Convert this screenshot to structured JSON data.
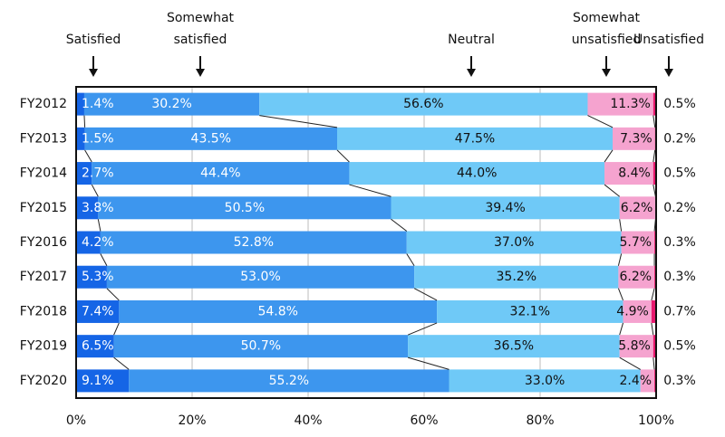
{
  "chart_data": {
    "type": "bar",
    "orientation": "horizontal",
    "stacked": true,
    "percent_stacked": true,
    "categories": [
      "FY2012",
      "FY2013",
      "FY2014",
      "FY2015",
      "FY2016",
      "FY2017",
      "FY2018",
      "FY2019",
      "FY2020"
    ],
    "series": [
      {
        "name": "Satisfied",
        "color": "#1565e6",
        "values": [
          1.4,
          1.5,
          2.7,
          3.8,
          4.2,
          5.3,
          7.4,
          6.5,
          9.1
        ],
        "labels": [
          "1.4%",
          "1.5%",
          "2.7%",
          "3.8%",
          "4.2%",
          "5.3%",
          "7.4%",
          "6.5%",
          "9.1%"
        ]
      },
      {
        "name": "Somewhat satisfied",
        "color": "#3d96ee",
        "values": [
          30.2,
          43.5,
          44.4,
          50.5,
          52.8,
          53.0,
          54.8,
          50.7,
          55.2
        ],
        "labels": [
          "30.2%",
          "43.5%",
          "44.4%",
          "50.5%",
          "52.8%",
          "53.0%",
          "54.8%",
          "50.7%",
          "55.2%"
        ]
      },
      {
        "name": "Neutral",
        "color": "#6fc9f7",
        "values": [
          56.6,
          47.5,
          44.0,
          39.4,
          37.0,
          35.2,
          32.1,
          36.5,
          33.0
        ],
        "labels": [
          "56.6%",
          "47.5%",
          "44.0%",
          "39.4%",
          "37.0%",
          "35.2%",
          "32.1%",
          "36.5%",
          "33.0%"
        ]
      },
      {
        "name": "Somewhat unsatisfied",
        "color": "#f5a3cf",
        "values": [
          11.3,
          7.3,
          8.4,
          6.2,
          5.7,
          6.2,
          4.9,
          5.8,
          2.4
        ],
        "labels": [
          "11.3%",
          "7.3%",
          "8.4%",
          "6.2%",
          "5.7%",
          "6.2%",
          "4.9%",
          "5.8%",
          "2.4%"
        ]
      },
      {
        "name": "Unsatisfied",
        "color": "#e8196e",
        "values": [
          0.5,
          0.2,
          0.5,
          0.2,
          0.3,
          0.3,
          0.7,
          0.5,
          0.3
        ],
        "labels": [
          "0.5%",
          "0.2%",
          "0.5%",
          "0.2%",
          "0.3%",
          "0.3%",
          "0.7%",
          "0.5%",
          "0.3%"
        ]
      }
    ],
    "legend_lines": [
      [
        "Satisfied"
      ],
      [
        "Somewhat",
        "satisfied"
      ],
      [
        "Neutral"
      ],
      [
        "Somewhat",
        "unsatisfied"
      ],
      [
        "Unsatisfied"
      ]
    ],
    "xticks": [
      "0%",
      "20%",
      "40%",
      "60%",
      "80%",
      "100%"
    ],
    "xlim": [
      0,
      100
    ],
    "grid": true,
    "legend_position": "top"
  }
}
